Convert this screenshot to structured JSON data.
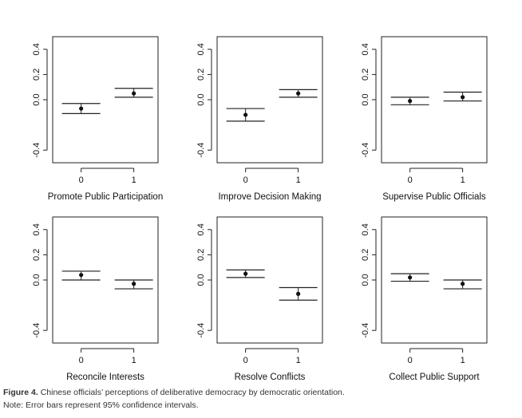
{
  "chart_data": [
    {
      "type": "errorbar",
      "xlabel": "Promote Public Participation",
      "categories": [
        "0",
        "1"
      ],
      "values": [
        -0.07,
        0.05
      ],
      "ci_low": [
        -0.11,
        0.02
      ],
      "ci_high": [
        -0.03,
        0.09
      ],
      "ylim": [
        -0.5,
        0.5
      ],
      "yticks": [
        "-0.4",
        "0.0",
        "0.2",
        "0.4"
      ],
      "grid": false
    },
    {
      "type": "errorbar",
      "xlabel": "Improve Decision Making",
      "categories": [
        "0",
        "1"
      ],
      "values": [
        -0.12,
        0.05
      ],
      "ci_low": [
        -0.17,
        0.02
      ],
      "ci_high": [
        -0.07,
        0.08
      ],
      "ylim": [
        -0.5,
        0.5
      ],
      "yticks": [
        "-0.4",
        "0.0",
        "0.2",
        "0.4"
      ],
      "grid": false
    },
    {
      "type": "errorbar",
      "xlabel": "Supervise Public Officials",
      "categories": [
        "0",
        "1"
      ],
      "values": [
        -0.01,
        0.02
      ],
      "ci_low": [
        -0.04,
        -0.01
      ],
      "ci_high": [
        0.02,
        0.06
      ],
      "ylim": [
        -0.5,
        0.5
      ],
      "yticks": [
        "-0.4",
        "0.0",
        "0.2",
        "0.4"
      ],
      "grid": false
    },
    {
      "type": "errorbar",
      "xlabel": "Reconcile Interests",
      "categories": [
        "0",
        "1"
      ],
      "values": [
        0.04,
        -0.03
      ],
      "ci_low": [
        0.0,
        -0.07
      ],
      "ci_high": [
        0.07,
        0.0
      ],
      "ylim": [
        -0.5,
        0.5
      ],
      "yticks": [
        "-0.4",
        "0.0",
        "0.2",
        "0.4"
      ],
      "grid": false
    },
    {
      "type": "errorbar",
      "xlabel": "Resolve Conflicts",
      "categories": [
        "0",
        "1"
      ],
      "values": [
        0.05,
        -0.11
      ],
      "ci_low": [
        0.02,
        -0.16
      ],
      "ci_high": [
        0.08,
        -0.06
      ],
      "ylim": [
        -0.5,
        0.5
      ],
      "yticks": [
        "-0.4",
        "0.0",
        "0.2",
        "0.4"
      ],
      "grid": false
    },
    {
      "type": "errorbar",
      "xlabel": "Collect Public Support",
      "categories": [
        "0",
        "1"
      ],
      "values": [
        0.02,
        -0.03
      ],
      "ci_low": [
        -0.01,
        -0.07
      ],
      "ci_high": [
        0.05,
        0.0
      ],
      "ylim": [
        -0.5,
        0.5
      ],
      "yticks": [
        "-0.4",
        "0.0",
        "0.2",
        "0.4"
      ],
      "grid": false
    }
  ],
  "caption": {
    "label": "Figure 4.",
    "text": "Chinese officials’ perceptions of deliberative democracy by democratic orientation."
  },
  "note": "Note: Error bars represent 95% confidence intervals."
}
